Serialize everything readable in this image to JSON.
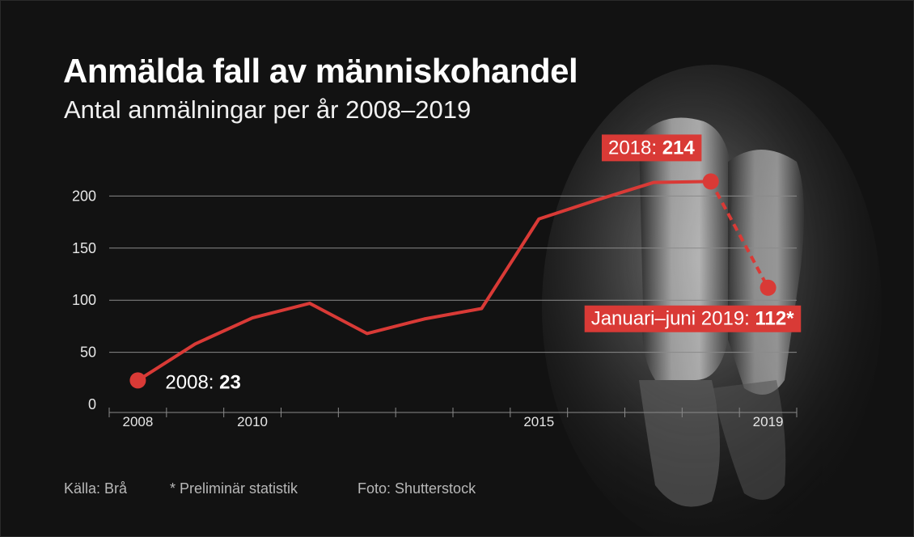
{
  "title": "Anmälda fall av människohandel",
  "subtitle": "Antal anmälningar per år 2008–2019",
  "footer": {
    "source": "Källa: Brå",
    "note": "* Preliminär statistik",
    "photo": "Foto: Shutterstock"
  },
  "colors": {
    "background": "#121212",
    "line": "#d93a36",
    "label_box": "#d93a36",
    "grid": "#8a8a8a",
    "text": "#ffffff"
  },
  "chart_data": {
    "type": "line",
    "title": "Anmälda fall av människohandel",
    "subtitle": "Antal anmälningar per år 2008–2019",
    "x": [
      2008,
      2009,
      2010,
      2011,
      2012,
      2013,
      2014,
      2015,
      2016,
      2017,
      2018,
      2019
    ],
    "series": [
      {
        "values": [
          23,
          58,
          83,
          97,
          68,
          82,
          92,
          178,
          196,
          213,
          214,
          112
        ],
        "dashed_last_segment": true
      }
    ],
    "x_tick_labels": [
      "2008",
      "2010",
      "2015",
      "2019"
    ],
    "x_tick_label_years": [
      2008,
      2010,
      2015,
      2019
    ],
    "y_ticks": [
      0,
      50,
      100,
      150,
      200
    ],
    "ylim": [
      0,
      250
    ],
    "xlim": [
      2007.5,
      2019.5
    ],
    "grid": "horizontal",
    "annotations": [
      {
        "year": 2008,
        "prefix": "2008: ",
        "value": "23",
        "style": "plain"
      },
      {
        "year": 2018,
        "prefix": "2018: ",
        "value": "214",
        "style": "box"
      },
      {
        "year": 2019,
        "prefix": "Januari–juni 2019: ",
        "value": "112*",
        "style": "box"
      }
    ]
  }
}
